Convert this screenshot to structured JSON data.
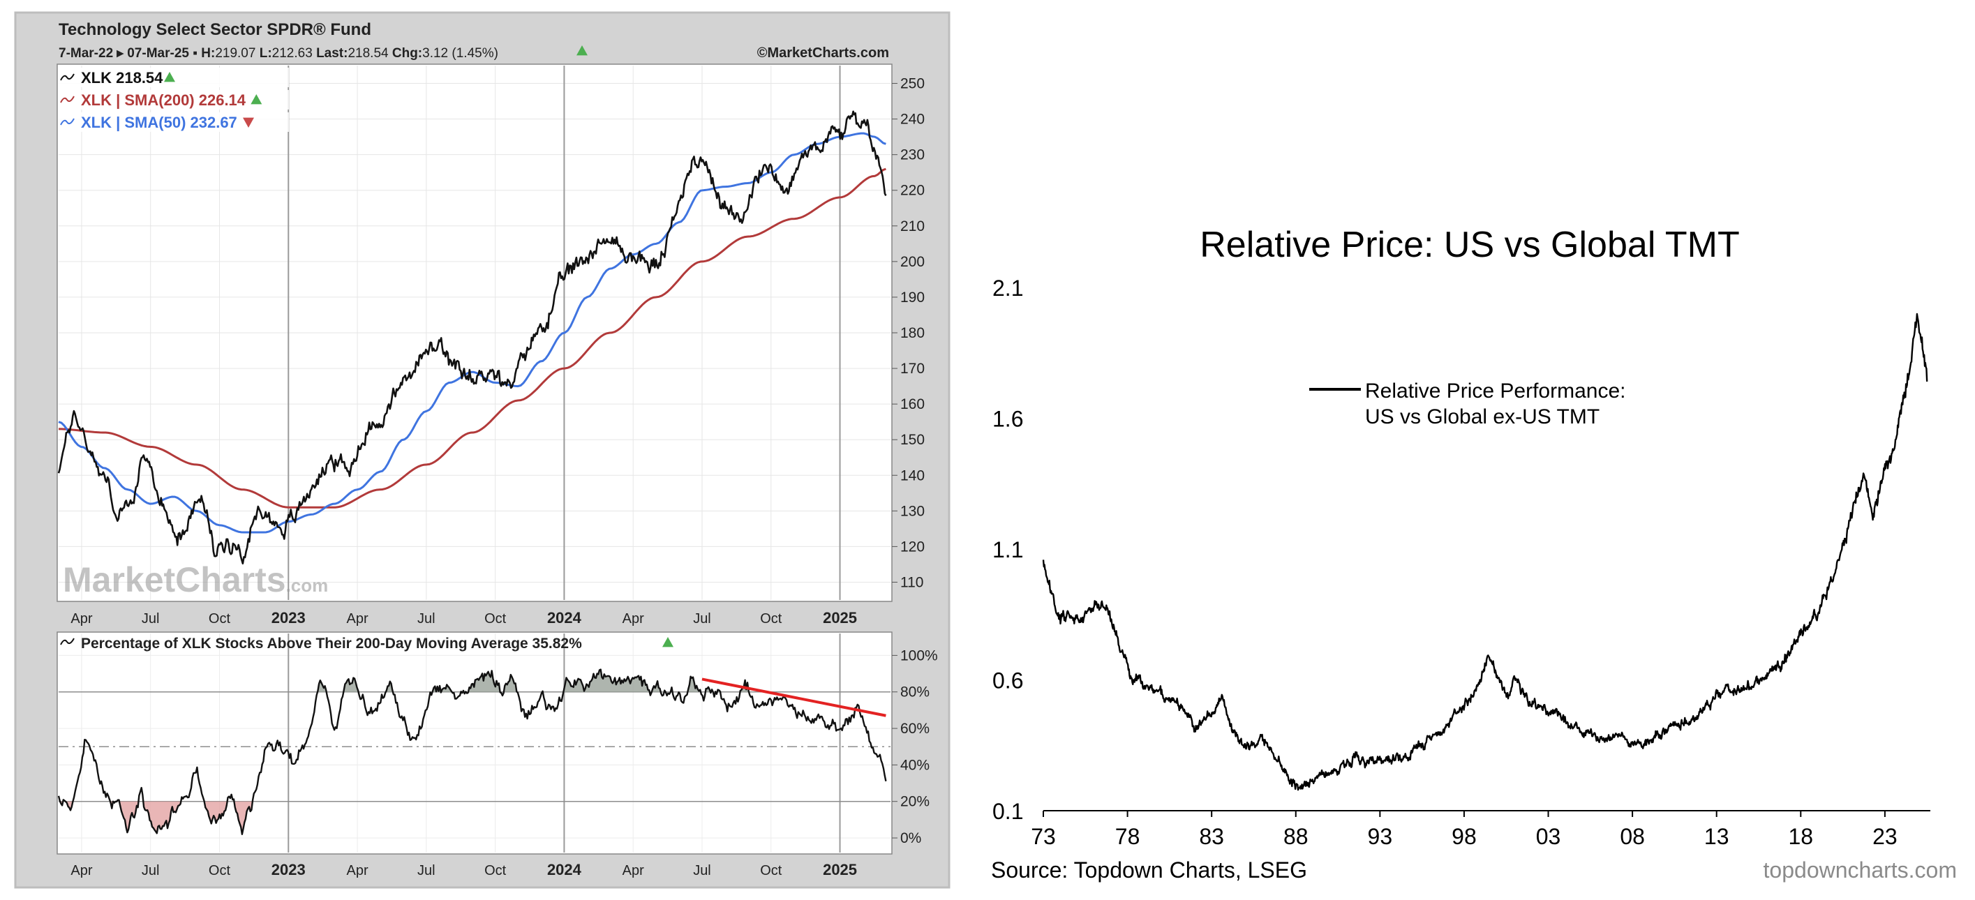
{
  "left_chart": {
    "header": {
      "title": "Technology Select Sector SPDR® Fund",
      "range": "7-Mar-22 ▸ 07-Mar-25 ▪ ",
      "h_label": "H:",
      "h_value": "219.07",
      "l_label": "L:",
      "l_value": "212.63",
      "last_label": "Last:",
      "last_value": "218.54",
      "chg_label": "Chg:",
      "chg_value": "3.12 (1.45%)",
      "copyright": "©MarketCharts.com"
    },
    "watermark": {
      "brand": "MarketCharts",
      "suffix": ".com"
    },
    "legend": [
      {
        "label": "XLK 218.54",
        "color": "#111111",
        "arrow": "up"
      },
      {
        "label": "XLK | SMA(200) 226.14",
        "color": "#b23a3a",
        "arrow": "up"
      },
      {
        "label": "XLK | SMA(50) 232.67",
        "color": "#3f74e0",
        "arrow": "down"
      }
    ],
    "lower_title": "Percentage of XLK Stocks Above Their 200-Day Moving Average 35.82%",
    "colors": {
      "price": "#111111",
      "sma200": "#b23a3a",
      "sma50": "#3f74e0",
      "trend": "#e32222",
      "up": "#4caf50",
      "down": "#c94a4a",
      "overbought_fill": "#9aa39a",
      "oversold_fill": "#e3a4a4"
    }
  },
  "right_chart": {
    "source": "Source: Topdown Charts, LSEG",
    "brand": "topdowncharts.com",
    "line_color": "#000000"
  },
  "chart_data": [
    {
      "type": "line",
      "title": "Technology Select Sector SPDR® Fund",
      "x_unit": "months since Mar 2022",
      "xlim": [
        0,
        36.2
      ],
      "ylim": [
        105,
        255
      ],
      "y_ticks": [
        110,
        120,
        130,
        140,
        150,
        160,
        170,
        180,
        190,
        200,
        210,
        220,
        230,
        240,
        250
      ],
      "x_ticks": [
        {
          "x": 1,
          "label": "Apr",
          "bold": false
        },
        {
          "x": 4,
          "label": "Jul",
          "bold": false
        },
        {
          "x": 7,
          "label": "Oct",
          "bold": false
        },
        {
          "x": 10,
          "label": "2023",
          "bold": true
        },
        {
          "x": 13,
          "label": "Apr",
          "bold": false
        },
        {
          "x": 16,
          "label": "Jul",
          "bold": false
        },
        {
          "x": 19,
          "label": "Oct",
          "bold": false
        },
        {
          "x": 22,
          "label": "2024",
          "bold": true
        },
        {
          "x": 25,
          "label": "Apr",
          "bold": false
        },
        {
          "x": 28,
          "label": "Jul",
          "bold": false
        },
        {
          "x": 31,
          "label": "Oct",
          "bold": false
        },
        {
          "x": 34,
          "label": "2025",
          "bold": true
        }
      ],
      "series": [
        {
          "name": "XLK",
          "style": "jagged",
          "x": [
            0,
            0.7,
            1.3,
            2.0,
            2.6,
            3.2,
            3.8,
            4.6,
            5.3,
            6.2,
            6.8,
            7.4,
            8.1,
            8.8,
            9.5,
            10.2,
            11.0,
            11.8,
            12.6,
            13.3,
            14.1,
            15.0,
            15.8,
            16.6,
            17.3,
            18.1,
            18.8,
            19.6,
            20.5,
            21.3,
            22.1,
            22.9,
            23.7,
            24.5,
            25.4,
            26.1,
            26.9,
            27.6,
            28.3,
            28.9,
            29.4,
            30.1,
            30.9,
            31.7,
            32.5,
            33.3,
            34.0,
            34.7,
            35.2,
            35.7,
            36.0
          ],
          "values": [
            142,
            158,
            148,
            140,
            128,
            133,
            145,
            130,
            124,
            135,
            118,
            122,
            120,
            131,
            126,
            127,
            137,
            145,
            141,
            152,
            157,
            166,
            173,
            176,
            168,
            166,
            171,
            163,
            177,
            185,
            196,
            201,
            207,
            203,
            200,
            199,
            213,
            231,
            226,
            216,
            210,
            220,
            228,
            220,
            231,
            235,
            236,
            240,
            238,
            228,
            218
          ]
        },
        {
          "name": "SMA(200)",
          "style": "smooth",
          "x": [
            0,
            2,
            4,
            6,
            8,
            10,
            12,
            14,
            16,
            18,
            20,
            22,
            24,
            26,
            28,
            30,
            32,
            34,
            35.5,
            36.0
          ],
          "values": [
            153,
            152,
            148,
            143,
            136,
            131,
            131,
            136,
            143,
            152,
            161,
            170,
            180,
            190,
            200,
            207,
            212,
            218,
            224,
            226
          ]
        },
        {
          "name": "SMA(50)",
          "style": "smooth",
          "x": [
            0,
            1,
            2,
            3,
            4,
            5,
            6,
            7,
            8,
            9,
            10,
            11,
            12,
            13,
            14,
            15,
            16,
            17,
            18,
            19,
            20,
            21,
            22,
            23,
            24,
            25,
            26,
            27,
            28,
            29,
            30,
            31,
            32,
            33,
            34,
            35,
            35.5,
            36.0
          ],
          "values": [
            155,
            148,
            142,
            136,
            132,
            134,
            130,
            126,
            124,
            124,
            127,
            129,
            132,
            136,
            141,
            150,
            158,
            166,
            169,
            166,
            165,
            172,
            180,
            190,
            198,
            202,
            205,
            211,
            220,
            221,
            222,
            225,
            230,
            233,
            235,
            236,
            235,
            233
          ]
        }
      ],
      "annotations": [
        "watermark MarketCharts.com"
      ]
    },
    {
      "type": "line",
      "title": "Percentage of XLK Stocks Above Their 200-Day Moving Average 35.82%",
      "x_unit": "months since Mar 2022",
      "xlim": [
        0,
        36.2
      ],
      "ylim": [
        -8,
        112
      ],
      "y_ticks": [
        0,
        20,
        40,
        60,
        80,
        100
      ],
      "y_tick_labels": [
        "0%",
        "20%",
        "40%",
        "60%",
        "80%",
        "100%"
      ],
      "reference_lines": {
        "solid": [
          20,
          80
        ],
        "dashed": [
          50
        ]
      },
      "series": [
        {
          "name": "% above 200-day MA",
          "style": "jagged",
          "x": [
            0,
            0.6,
            1.2,
            1.8,
            2.4,
            3.0,
            3.6,
            4.2,
            4.8,
            5.4,
            6.0,
            6.5,
            7.0,
            7.5,
            8.0,
            8.5,
            9.0,
            9.6,
            10.2,
            10.8,
            11.4,
            12.0,
            12.6,
            13.2,
            13.8,
            14.4,
            15.0,
            15.6,
            16.2,
            16.8,
            17.4,
            18.0,
            18.6,
            19.2,
            19.8,
            20.4,
            21.0,
            21.6,
            22.2,
            22.8,
            23.4,
            24.0,
            24.6,
            25.2,
            25.8,
            26.4,
            27.0,
            27.6,
            28.2,
            28.8,
            29.4,
            30.0,
            30.6,
            31.2,
            31.8,
            32.4,
            33.0,
            33.6,
            34.2,
            34.8,
            35.4,
            36.0
          ],
          "values": [
            20,
            16,
            55,
            30,
            20,
            8,
            25,
            5,
            8,
            25,
            35,
            12,
            10,
            22,
            5,
            25,
            45,
            55,
            40,
            50,
            90,
            60,
            85,
            75,
            70,
            82,
            62,
            55,
            80,
            85,
            75,
            85,
            92,
            80,
            85,
            65,
            75,
            70,
            88,
            82,
            88,
            90,
            85,
            88,
            78,
            82,
            75,
            83,
            82,
            80,
            72,
            82,
            70,
            75,
            72,
            70,
            65,
            62,
            60,
            70,
            52,
            36
          ]
        }
      ],
      "trend_line": {
        "x": [
          28.0,
          36.0
        ],
        "y": [
          87,
          67
        ]
      },
      "shaded_above": 80,
      "shaded_below": 20
    },
    {
      "type": "line",
      "title": "Relative Price: US vs Global TMT",
      "xlabel": "",
      "ylabel": "",
      "xlim": [
        1973,
        2025.7
      ],
      "ylim": [
        0.1,
        2.1
      ],
      "y_ticks": [
        0.1,
        0.6,
        1.1,
        1.6,
        2.1
      ],
      "x_ticks": [
        1973,
        1978,
        1983,
        1988,
        1993,
        1998,
        2003,
        2008,
        2013,
        2018,
        2023
      ],
      "x_tick_labels": [
        "73",
        "78",
        "83",
        "88",
        "93",
        "98",
        "03",
        "08",
        "13",
        "18",
        "23"
      ],
      "legend": [
        "Relative Price Performance:",
        "US vs Global ex-US TMT"
      ],
      "legend_position": "upper-center",
      "series": [
        {
          "name": "Relative Price Performance: US vs Global ex-US TMT",
          "x": [
            1973.0,
            1973.3,
            1974.0,
            1974.6,
            1975.2,
            1976.0,
            1976.8,
            1977.3,
            1977.7,
            1978.3,
            1979.0,
            1980.0,
            1981.0,
            1982.0,
            1983.0,
            1983.6,
            1984.2,
            1985.0,
            1986.0,
            1986.6,
            1987.2,
            1987.7,
            1988.2,
            1989.0,
            1990.0,
            1991.0,
            1991.6,
            1992.3,
            1993.0,
            1994.0,
            1995.0,
            1996.0,
            1997.0,
            1998.0,
            1998.8,
            1999.4,
            2000.0,
            2000.6,
            2001.0,
            2001.5,
            2002.0,
            2002.6,
            2003.3,
            2004.0,
            2005.0,
            2006.0,
            2007.0,
            2008.0,
            2009.0,
            2010.0,
            2011.0,
            2012.0,
            2012.8,
            2013.5,
            2014.0,
            2015.0,
            2016.0,
            2017.0,
            2018.0,
            2019.0,
            2020.0,
            2020.7,
            2021.3,
            2021.8,
            2022.3,
            2022.9,
            2023.5,
            2024.0,
            2024.5,
            2024.9,
            2025.2,
            2025.5
          ],
          "values": [
            1.05,
            0.95,
            0.83,
            0.85,
            0.84,
            0.88,
            0.89,
            0.78,
            0.7,
            0.6,
            0.57,
            0.55,
            0.5,
            0.42,
            0.48,
            0.54,
            0.42,
            0.34,
            0.37,
            0.33,
            0.28,
            0.22,
            0.19,
            0.22,
            0.25,
            0.27,
            0.32,
            0.27,
            0.28,
            0.3,
            0.32,
            0.37,
            0.42,
            0.5,
            0.58,
            0.68,
            0.62,
            0.53,
            0.62,
            0.55,
            0.52,
            0.5,
            0.47,
            0.44,
            0.4,
            0.37,
            0.4,
            0.36,
            0.37,
            0.41,
            0.43,
            0.48,
            0.52,
            0.57,
            0.54,
            0.58,
            0.62,
            0.68,
            0.78,
            0.85,
            1.0,
            1.15,
            1.3,
            1.38,
            1.22,
            1.4,
            1.48,
            1.65,
            1.8,
            2.0,
            1.88,
            1.75
          ]
        }
      ],
      "source": "Source: Topdown Charts, LSEG"
    }
  ]
}
